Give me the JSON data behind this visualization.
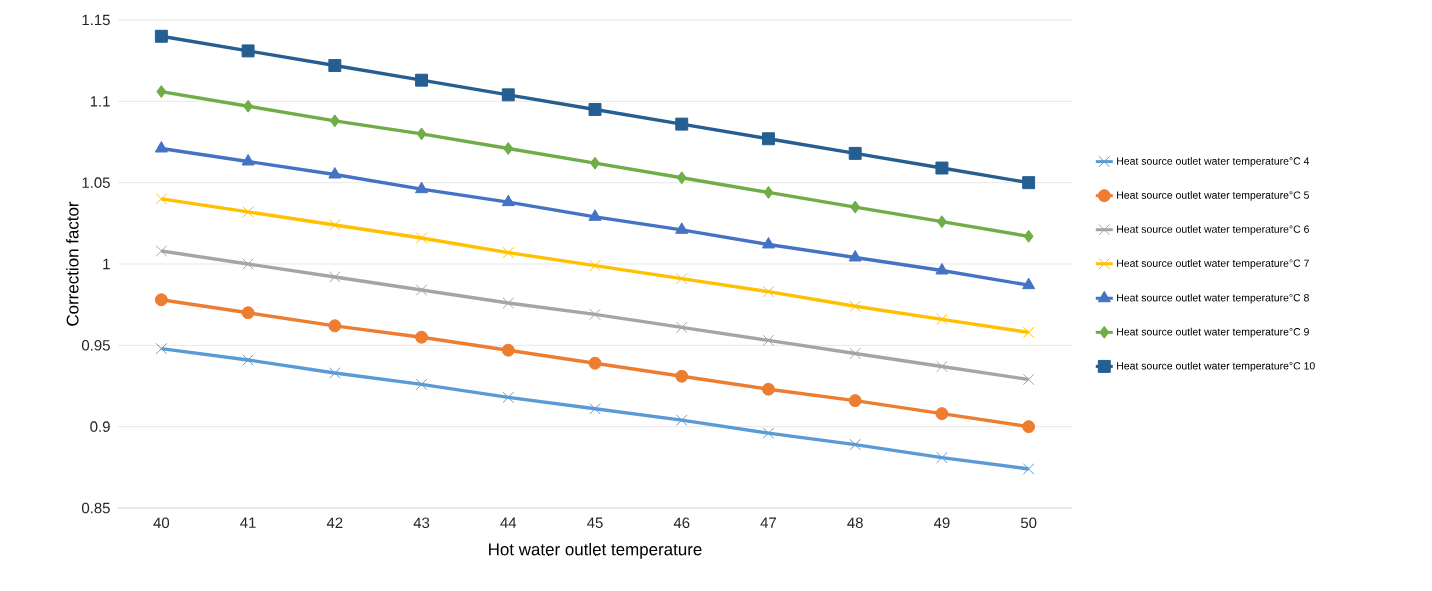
{
  "chart_data": {
    "type": "line",
    "xlabel": "Hot water outlet temperature",
    "ylabel": "Correction factor",
    "categories": [
      "40",
      "41",
      "42",
      "43",
      "44",
      "45",
      "46",
      "47",
      "48",
      "49",
      "50"
    ],
    "ylim": [
      0.85,
      1.15
    ],
    "yticks": [
      0.85,
      0.9,
      0.95,
      1,
      1.05,
      1.1,
      1.15
    ],
    "grid": "y",
    "legend": "right",
    "line_style": "solid",
    "series": [
      {
        "name": "Heat source outlet water temperature°C 4",
        "color": "#5b9bd5",
        "marker": "cross",
        "values": [
          0.948,
          0.941,
          0.933,
          0.926,
          0.918,
          0.911,
          0.904,
          0.896,
          0.889,
          0.881,
          0.874
        ]
      },
      {
        "name": "Heat source outlet water temperature°C 5",
        "color": "#ed7d31",
        "marker": "circle",
        "values": [
          0.978,
          0.97,
          0.962,
          0.955,
          0.947,
          0.939,
          0.931,
          0.923,
          0.916,
          0.908,
          0.9
        ]
      },
      {
        "name": "Heat source outlet water temperature°C 6",
        "color": "#a5a5a5",
        "marker": "cross",
        "values": [
          1.008,
          1.0,
          0.992,
          0.984,
          0.976,
          0.969,
          0.961,
          0.953,
          0.945,
          0.937,
          0.929
        ]
      },
      {
        "name": "Heat source outlet water temperature°C 7",
        "color": "#ffc000",
        "marker": "cross",
        "values": [
          1.04,
          1.032,
          1.024,
          1.016,
          1.007,
          0.999,
          0.991,
          0.983,
          0.974,
          0.966,
          0.958
        ]
      },
      {
        "name": "Heat source outlet water temperature°C 8",
        "color": "#4472c4",
        "marker": "triangle",
        "values": [
          1.071,
          1.063,
          1.055,
          1.046,
          1.038,
          1.029,
          1.021,
          1.012,
          1.004,
          0.996,
          0.987
        ]
      },
      {
        "name": "Heat source outlet water temperature°C 9",
        "color": "#70ad47",
        "marker": "diamond",
        "values": [
          1.106,
          1.097,
          1.088,
          1.08,
          1.071,
          1.062,
          1.053,
          1.044,
          1.035,
          1.026,
          1.017
        ]
      },
      {
        "name": "Heat source outlet water temperature°C 10",
        "color": "#255e91",
        "marker": "square",
        "values": [
          1.14,
          1.131,
          1.122,
          1.113,
          1.104,
          1.095,
          1.086,
          1.077,
          1.068,
          1.059,
          1.05
        ]
      }
    ]
  }
}
